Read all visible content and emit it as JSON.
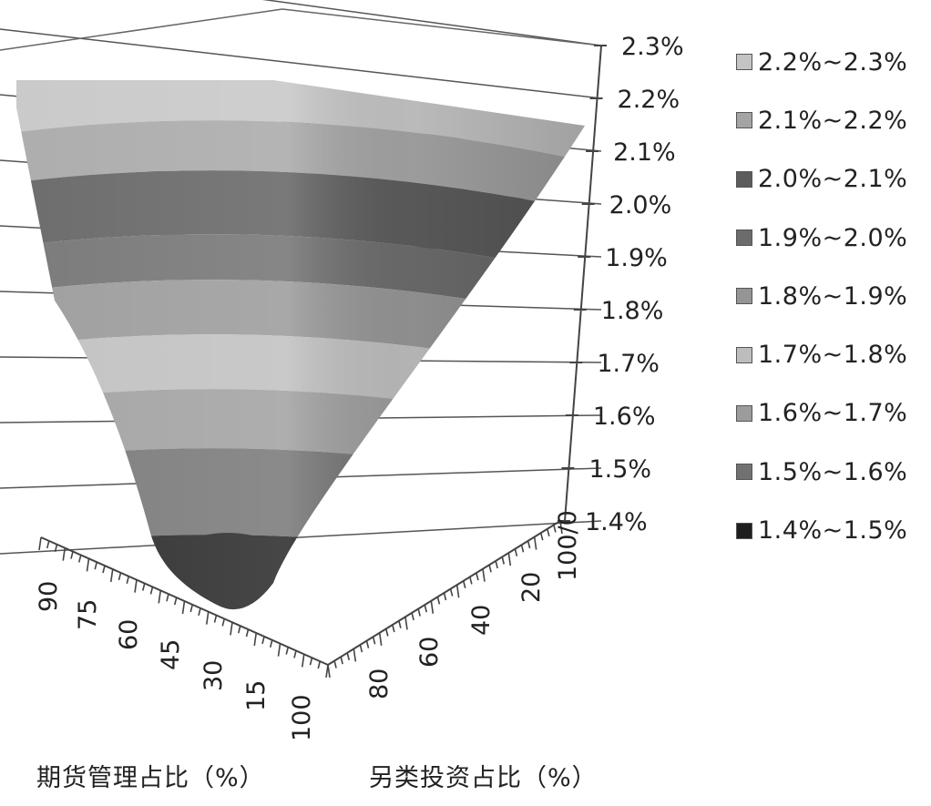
{
  "chart_data": {
    "type": "surface",
    "z_axis": {
      "tick_labels": [
        "2.3%",
        "2.2%",
        "2.1%",
        "2.0%",
        "1.9%",
        "1.8%",
        "1.7%",
        "1.6%",
        "1.5%",
        "1.4%"
      ],
      "range": [
        1.4,
        2.3
      ],
      "unit": "%"
    },
    "x_axis": {
      "label": "期货管理占比（%）",
      "tick_labels": [
        "90",
        "75",
        "60",
        "45",
        "30",
        "15",
        "100"
      ]
    },
    "y_axis": {
      "label": "另类投资占比（%）",
      "tick_labels": [
        "80",
        "60",
        "40",
        "20",
        "100/0"
      ]
    },
    "legend": {
      "placement": "right",
      "items": [
        {
          "label": "2.2%~2.3%",
          "color": "#c4c4c4"
        },
        {
          "label": "2.1%~2.2%",
          "color": "#a4a4a4"
        },
        {
          "label": "2.0%~2.1%",
          "color": "#5c5c5c"
        },
        {
          "label": "1.9%~2.0%",
          "color": "#6c6c6c"
        },
        {
          "label": "1.8%~1.9%",
          "color": "#959595"
        },
        {
          "label": "1.7%~1.8%",
          "color": "#bdbdbd"
        },
        {
          "label": "1.6%~1.7%",
          "color": "#9c9c9c"
        },
        {
          "label": "1.5%~1.6%",
          "color": "#717171"
        },
        {
          "label": "1.4%~1.5%",
          "color": "#1e1e1e"
        }
      ]
    },
    "bands": [
      {
        "range": "2.2%~2.3%",
        "color": "#c4c4c4"
      },
      {
        "range": "2.1%~2.2%",
        "color": "#a4a4a4"
      },
      {
        "range": "2.0%~2.1%",
        "color": "#5c5c5c"
      },
      {
        "range": "1.9%~2.0%",
        "color": "#6c6c6c"
      },
      {
        "range": "1.8%~1.9%",
        "color": "#959595"
      },
      {
        "range": "1.7%~1.8%",
        "color": "#bdbdbd"
      },
      {
        "range": "1.6%~1.7%",
        "color": "#9c9c9c"
      },
      {
        "range": "1.5%~1.6%",
        "color": "#717171"
      },
      {
        "range": "1.4%~1.5%",
        "color": "#1e1e1e"
      }
    ],
    "grid": true
  }
}
